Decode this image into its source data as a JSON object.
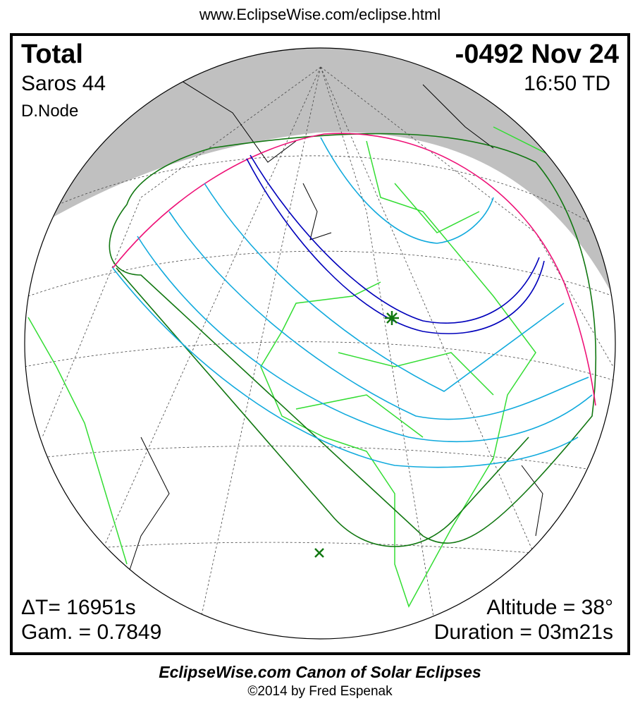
{
  "header_url": "www.EclipseWise.com/eclipse.html",
  "eclipse": {
    "type": "Total",
    "date": "-0492 Nov 24",
    "saros": "Saros  44",
    "time": "16:50 TD",
    "node": "D.Node",
    "delta_t": "ΔT=  16951s",
    "gamma": "Gam. = 0.7849",
    "altitude": "Altitude = 38°",
    "duration": "Duration = 03m21s"
  },
  "map": {
    "colors": {
      "night": "#c0c0c0",
      "borders": "#33dd33",
      "penumbra": "#117711",
      "umbra": "#0000bb",
      "partial_lines": "#11aadd",
      "limit": "#ee1177"
    },
    "markers": [
      "greatest-eclipse-star",
      "subsolar-x"
    ]
  },
  "footer": {
    "title": "EclipseWise.com Canon of Solar Eclipses",
    "copyright": "©2014 by Fred Espenak"
  }
}
